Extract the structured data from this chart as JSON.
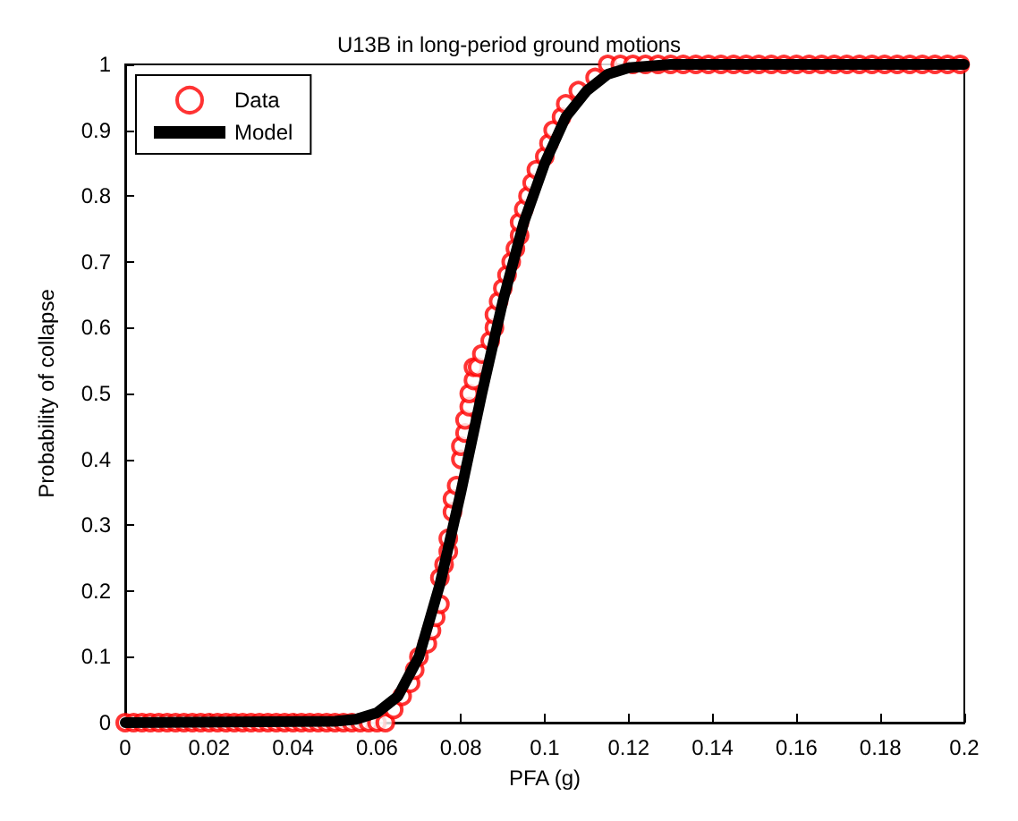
{
  "chart_data": {
    "type": "scatter",
    "title": "U13B in long-period ground motions",
    "xlabel": "PFA (g)",
    "ylabel": "Probability of collapse",
    "xlim": [
      0,
      0.2
    ],
    "ylim": [
      0,
      1
    ],
    "xticks": [
      0,
      0.02,
      0.04,
      0.06,
      0.08,
      0.1,
      0.12,
      0.14,
      0.16,
      0.18,
      0.2
    ],
    "yticks": [
      0,
      0.1,
      0.2,
      0.3,
      0.4,
      0.5,
      0.6,
      0.7,
      0.8,
      0.9,
      1
    ],
    "grid": false,
    "legend": "top left",
    "series": [
      {
        "name": "Data",
        "marker": "circle",
        "color": "#ff0000",
        "x": [
          0,
          0.002,
          0.004,
          0.006,
          0.008,
          0.01,
          0.012,
          0.014,
          0.016,
          0.018,
          0.02,
          0.022,
          0.024,
          0.026,
          0.028,
          0.03,
          0.032,
          0.034,
          0.036,
          0.038,
          0.04,
          0.042,
          0.044,
          0.046,
          0.048,
          0.05,
          0.052,
          0.054,
          0.056,
          0.058,
          0.06,
          0.062,
          0.064,
          0.066,
          0.068,
          0.069,
          0.07,
          0.072,
          0.073,
          0.074,
          0.075,
          0.075,
          0.076,
          0.077,
          0.077,
          0.078,
          0.078,
          0.079,
          0.08,
          0.08,
          0.081,
          0.081,
          0.082,
          0.082,
          0.083,
          0.083,
          0.084,
          0.085,
          0.087,
          0.088,
          0.088,
          0.089,
          0.09,
          0.091,
          0.092,
          0.093,
          0.094,
          0.094,
          0.095,
          0.096,
          0.097,
          0.098,
          0.1,
          0.101,
          0.102,
          0.104,
          0.105,
          0.108,
          0.112,
          0.115,
          0.118,
          0.121,
          0.124,
          0.127,
          0.13,
          0.133,
          0.136,
          0.139,
          0.142,
          0.145,
          0.148,
          0.151,
          0.154,
          0.157,
          0.16,
          0.163,
          0.166,
          0.169,
          0.172,
          0.175,
          0.178,
          0.181,
          0.184,
          0.187,
          0.19,
          0.193,
          0.196,
          0.199
        ],
        "values": [
          0,
          0,
          0,
          0,
          0,
          0,
          0,
          0,
          0,
          0,
          0,
          0,
          0,
          0,
          0,
          0,
          0,
          0,
          0,
          0,
          0,
          0,
          0,
          0,
          0,
          0,
          0,
          0,
          0,
          0,
          0,
          0,
          0.02,
          0.04,
          0.06,
          0.08,
          0.1,
          0.12,
          0.14,
          0.16,
          0.18,
          0.22,
          0.24,
          0.26,
          0.28,
          0.32,
          0.34,
          0.36,
          0.4,
          0.42,
          0.44,
          0.46,
          0.48,
          0.5,
          0.52,
          0.54,
          0.54,
          0.56,
          0.58,
          0.6,
          0.62,
          0.64,
          0.66,
          0.68,
          0.7,
          0.72,
          0.74,
          0.76,
          0.78,
          0.8,
          0.82,
          0.84,
          0.86,
          0.88,
          0.9,
          0.92,
          0.94,
          0.96,
          0.98,
          1,
          1,
          1,
          1,
          1,
          1,
          1,
          1,
          1,
          1,
          1,
          1,
          1,
          1,
          1,
          1,
          1,
          1,
          1,
          1,
          1,
          1,
          1,
          1,
          1,
          1,
          1,
          1,
          1
        ]
      },
      {
        "name": "Model",
        "type": "line",
        "marker": "none",
        "line_style": "solid",
        "color": "#000000",
        "x": [
          0,
          0.05,
          0.055,
          0.06,
          0.065,
          0.07,
          0.075,
          0.08,
          0.085,
          0.09,
          0.095,
          0.1,
          0.105,
          0.11,
          0.115,
          0.12,
          0.13,
          0.2
        ],
        "values": [
          0,
          0.002,
          0.005,
          0.015,
          0.04,
          0.1,
          0.21,
          0.35,
          0.5,
          0.64,
          0.76,
          0.85,
          0.92,
          0.96,
          0.985,
          0.995,
          1,
          1
        ]
      }
    ]
  }
}
